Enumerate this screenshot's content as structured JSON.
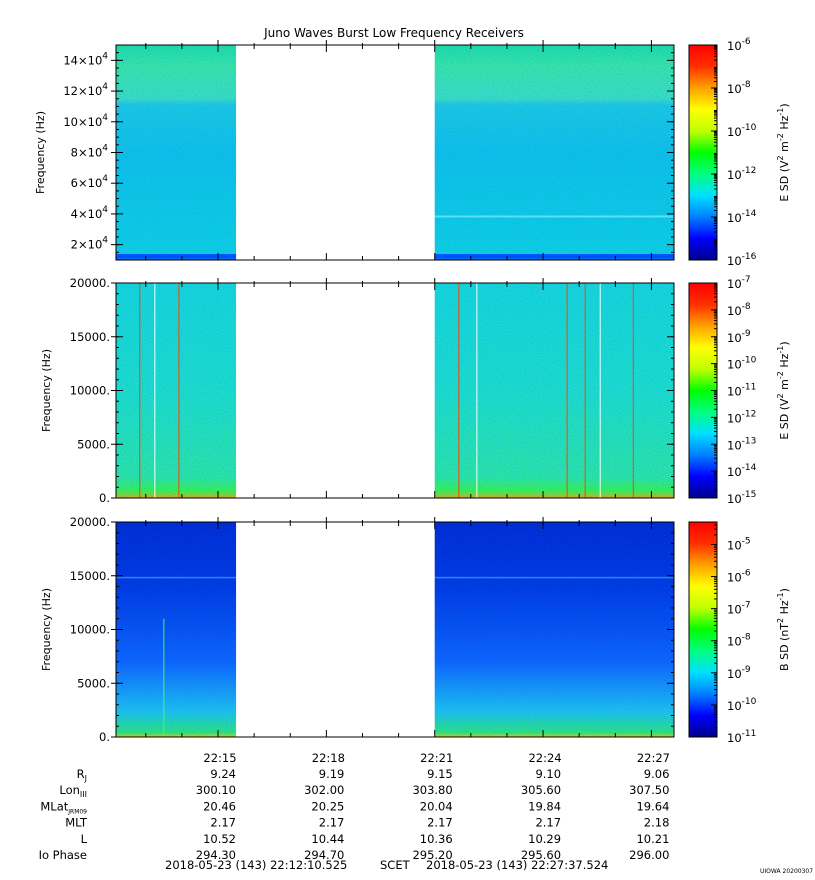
{
  "title": "Juno Waves Burst Low Frequency Receivers",
  "stamp": "UIOWA 20200307",
  "footer": {
    "start": "2018-05-23 (143) 22:12:10.525",
    "scet": "SCET",
    "end": "2018-05-23 (143) 22:27:37.524"
  },
  "colors": {
    "colormap": [
      "#00008b",
      "#0000ff",
      "#0080ff",
      "#00e0ff",
      "#00ff80",
      "#00ff00",
      "#c0ff00",
      "#ffff00",
      "#ffa000",
      "#ff3000",
      "#ff0000"
    ],
    "background_a": "#10e0d0",
    "background_b": "#0020d0",
    "gap": "#ffffff"
  },
  "chart_data": [
    {
      "type": "heatmap",
      "title": "Juno Waves Burst Low Frequency Receivers",
      "ylabel": "Frequency (Hz)",
      "ylim": [
        10000,
        150000
      ],
      "yticks": [
        "2×10^4",
        "4×10^4",
        "6×10^4",
        "8×10^4",
        "10×10^4",
        "12×10^4",
        "14×10^4"
      ],
      "xlim": [
        "22:12:10.525",
        "22:27:37.524"
      ],
      "data_gap": [
        "22:15:30",
        "22:21:00"
      ],
      "colorbar": {
        "label": "E SD (V^2 m^-2 Hz^-1)",
        "scale": "log",
        "ticks": [
          "10^-6",
          "10^-8",
          "10^-10",
          "10^-12",
          "10^-14",
          "10^-16"
        ]
      }
    },
    {
      "type": "heatmap",
      "ylabel": "Frequency (Hz)",
      "ylim": [
        0,
        20000
      ],
      "yticks": [
        "0.",
        "5000.",
        "10000.",
        "15000.",
        "20000."
      ],
      "xlim": [
        "22:12:10.525",
        "22:27:37.524"
      ],
      "data_gap": [
        "22:15:30",
        "22:21:00"
      ],
      "colorbar": {
        "label": "E SD (V^2 m^-2 Hz^-1)",
        "scale": "log",
        "ticks": [
          "10^-7",
          "10^-8",
          "10^-9",
          "10^-10",
          "10^-11",
          "10^-12",
          "10^-13",
          "10^-14",
          "10^-15"
        ]
      }
    },
    {
      "type": "heatmap",
      "ylabel": "Frequency (Hz)",
      "ylim": [
        0,
        20000
      ],
      "yticks": [
        "0.",
        "5000.",
        "10000.",
        "15000.",
        "20000."
      ],
      "xlim": [
        "22:12:10.525",
        "22:27:37.524"
      ],
      "data_gap": [
        "22:15:30",
        "22:21:00"
      ],
      "colorbar": {
        "label": "B SD (nT^2 Hz^-1)",
        "scale": "log",
        "ticks": [
          "10^-5",
          "10^-6",
          "10^-7",
          "10^-8",
          "10^-9",
          "10^-10",
          "10^-11"
        ]
      }
    }
  ],
  "ephemeris": {
    "times": [
      "22:15",
      "22:18",
      "22:21",
      "22:24",
      "22:27"
    ],
    "rows": [
      {
        "label": "R",
        "sub": "J",
        "values": [
          "9.24",
          "9.19",
          "9.15",
          "9.10",
          "9.06"
        ]
      },
      {
        "label": "Lon",
        "sub": "III",
        "values": [
          "300.10",
          "302.00",
          "303.80",
          "305.60",
          "307.50"
        ]
      },
      {
        "label": "MLat",
        "sub": "JRM09",
        "values": [
          "20.46",
          "20.25",
          "20.04",
          "19.84",
          "19.64"
        ]
      },
      {
        "label": "MLT",
        "sub": "",
        "values": [
          "2.17",
          "2.17",
          "2.17",
          "2.17",
          "2.18"
        ]
      },
      {
        "label": "L",
        "sub": "",
        "values": [
          "10.52",
          "10.44",
          "10.36",
          "10.29",
          "10.21"
        ]
      },
      {
        "label": "Io Phase",
        "sub": "",
        "values": [
          "294.30",
          "294.70",
          "295.20",
          "295.60",
          "296.00"
        ]
      }
    ]
  }
}
